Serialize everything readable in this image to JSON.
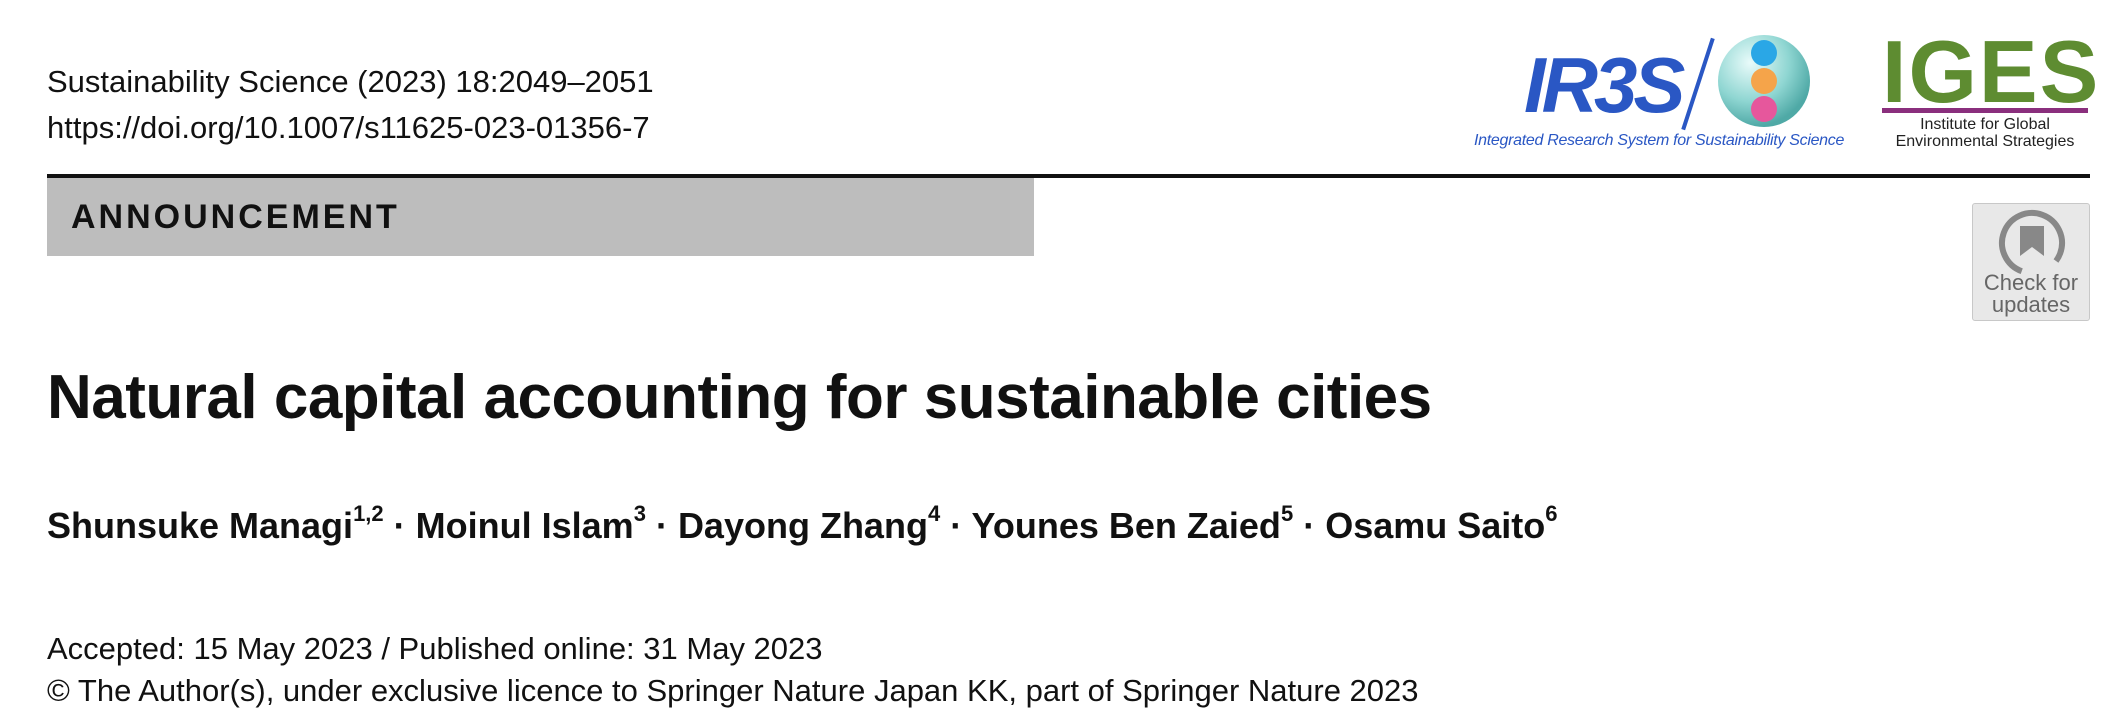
{
  "journal": {
    "citation": "Sustainability Science (2023) 18:2049–2051",
    "doi": "https://doi.org/10.1007/s11625-023-01356-7"
  },
  "logos": {
    "ir3s": {
      "name": "IR3S",
      "tagline": "Integrated Research System for Sustainability Science",
      "color": "#2a57c4"
    },
    "iges": {
      "name": "IGES",
      "line1": "Institute for Global",
      "line2": "Environmental Strategies",
      "color": "#5e8c31",
      "bar_color": "#8a2f7d"
    }
  },
  "section_label": "ANNOUNCEMENT",
  "check_updates": {
    "line1": "Check for",
    "line2": "updates"
  },
  "article": {
    "title": "Natural capital accounting for sustainable cities",
    "authors": [
      {
        "name": "Shunsuke Managi",
        "affil": "1,2"
      },
      {
        "name": "Moinul Islam",
        "affil": "3"
      },
      {
        "name": "Dayong Zhang",
        "affil": "4"
      },
      {
        "name": "Younes Ben Zaied",
        "affil": "5"
      },
      {
        "name": "Osamu Saito",
        "affil": "6"
      }
    ],
    "separator": " · ",
    "dates": "Accepted: 15 May 2023 / Published online: 31 May 2023",
    "copyright": "© The Author(s), under exclusive licence to Springer Nature Japan KK, part of Springer Nature 2023"
  }
}
